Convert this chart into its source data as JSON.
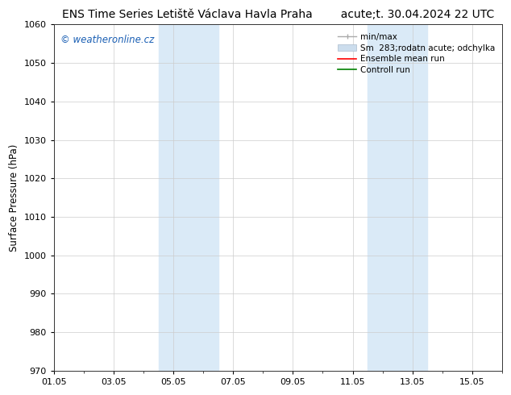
{
  "title_left": "ENS Time Series Letiště Václava Havla Praha",
  "title_right": "acute;t. 30.04.2024 22 UTC",
  "ylabel": "Surface Pressure (hPa)",
  "ylim": [
    970,
    1060
  ],
  "yticks": [
    970,
    980,
    990,
    1000,
    1010,
    1020,
    1030,
    1040,
    1050,
    1060
  ],
  "xtick_labels": [
    "01.05",
    "03.05",
    "05.05",
    "07.05",
    "09.05",
    "11.05",
    "13.05",
    "15.05"
  ],
  "xtick_positions": [
    0,
    2,
    4,
    6,
    8,
    10,
    12,
    14
  ],
  "xlim": [
    0,
    15
  ],
  "shade_regions": [
    {
      "start": 3.5,
      "end": 5.5
    },
    {
      "start": 10.5,
      "end": 12.5
    }
  ],
  "shade_color": "#daeaf7",
  "watermark": "© weatheronline.cz",
  "watermark_color": "#1a5fb4",
  "bg_color": "#ffffff",
  "grid_color": "#cccccc",
  "title_fontsize": 10,
  "axis_fontsize": 8.5,
  "tick_fontsize": 8,
  "legend_fontsize": 7.5
}
